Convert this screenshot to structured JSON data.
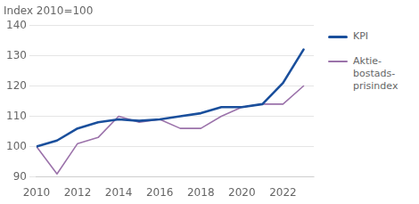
{
  "chart_data": {
    "type": "line",
    "title": "Index 2010=100",
    "x": [
      2010,
      2011,
      2012,
      2013,
      2014,
      2015,
      2016,
      2017,
      2018,
      2019,
      2020,
      2021,
      2022,
      2023
    ],
    "series": [
      {
        "name": "KPI",
        "color": "#1a4f9c",
        "values": [
          100,
          102,
          106,
          108,
          109,
          108.5,
          109,
          110,
          111,
          113,
          113,
          114,
          121,
          132
        ]
      },
      {
        "name": "Aktie-\nbostads-\nprisindex",
        "color": "#9b72aa",
        "values": [
          100,
          91,
          101,
          103,
          110,
          108,
          109,
          106,
          106,
          110,
          113,
          114,
          114,
          120
        ]
      }
    ],
    "xlim": [
      2010,
      2023.5
    ],
    "xticks": [
      2010,
      2012,
      2014,
      2016,
      2018,
      2020,
      2022
    ],
    "ylim": [
      90,
      140
    ],
    "yticks": [
      90,
      100,
      110,
      120,
      130,
      140
    ],
    "grid": "y",
    "legend": "right"
  }
}
